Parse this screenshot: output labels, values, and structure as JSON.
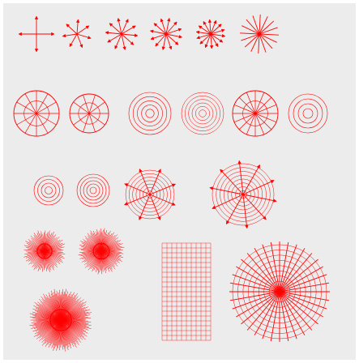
{
  "canvas": {
    "background": "#ffffff",
    "panel_color": "#ececec",
    "ink_color": "#ff0000"
  },
  "figures": [
    {
      "id": "star-burst-small",
      "kind": "arrow-star"
    },
    {
      "id": "star-burst-cluster",
      "kind": "arrow-star"
    },
    {
      "id": "star-burst-ring",
      "kind": "arrow-star"
    },
    {
      "id": "star-burst-dense",
      "kind": "arrow-star"
    },
    {
      "id": "spoke-wheel",
      "kind": "spoke-circle"
    },
    {
      "id": "concentric-arrows",
      "kind": "concentric-rings"
    },
    {
      "id": "dense-disc",
      "kind": "filled-disc"
    },
    {
      "id": "lattice-square",
      "kind": "lattice"
    },
    {
      "id": "mesh-disc",
      "kind": "mesh-circle"
    }
  ]
}
